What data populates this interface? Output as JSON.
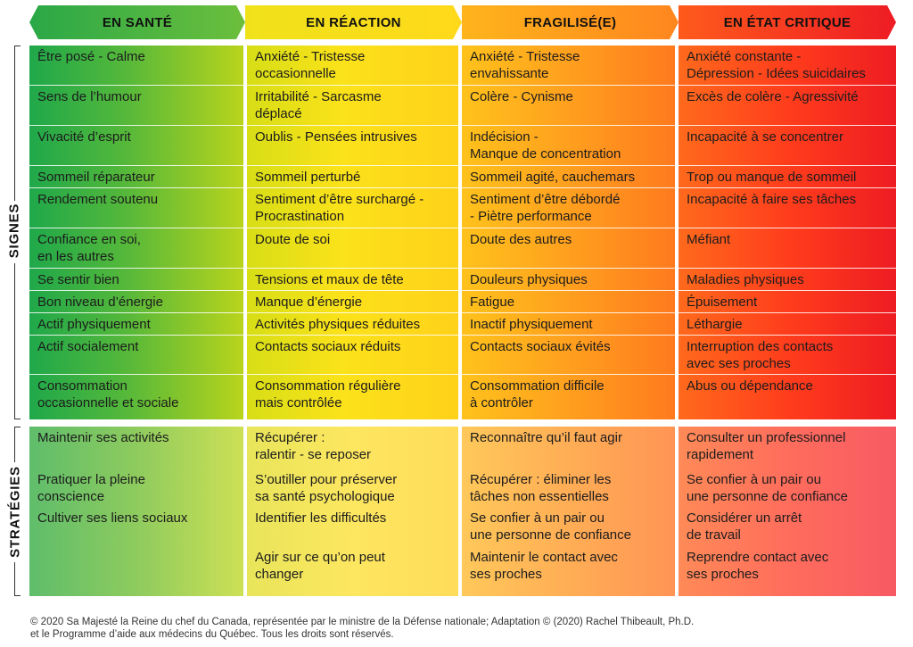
{
  "headers": [
    "EN SANTÉ",
    "EN RÉACTION",
    "FRAGILISÉ(E)",
    "EN ÉTAT CRITIQUE"
  ],
  "header_colors": [
    "#2fb34a",
    "#fbe21a",
    "#ff9c1e",
    "#f0242a"
  ],
  "side_labels": {
    "signes": "SIGNES",
    "strategies": "STRATÉGIES"
  },
  "signes": [
    [
      "Être posé - Calme",
      "Anxiété - Tristesse\noccasionnelle",
      "Anxiété - Tristesse\nenvahissante",
      "Anxiété constante -\nDépression - Idées suicidaires"
    ],
    [
      "Sens de l’humour",
      "Irritabilité - Sarcasme\ndéplacé",
      "Colère - Cynisme",
      "Excès de colère - Agressivité"
    ],
    [
      "Vivacité d’esprit",
      "Oublis - Pensées intrusives",
      "Indécision -\nManque de concentration",
      "Incapacité à se concentrer"
    ],
    [
      "Sommeil réparateur",
      "Sommeil perturbé",
      "Sommeil agité, cauchemars",
      "Trop ou manque de sommeil"
    ],
    [
      "Rendement soutenu",
      "Sentiment d’être surchargé -\nProcrastination",
      "Sentiment d’être débordé\n-  Piètre performance",
      "Incapacité à faire ses tâches"
    ],
    [
      "Confiance en soi,\nen les autres",
      "Doute de soi",
      "Doute des autres",
      "Méfiant"
    ],
    [
      "Se sentir bien",
      "Tensions et maux de tête",
      "Douleurs physiques",
      "Maladies physiques"
    ],
    [
      "Bon niveau d’énergie",
      "Manque d’énergie",
      "Fatigue",
      "Épuisement"
    ],
    [
      "Actif physiquement",
      "Activités physiques réduites",
      "Inactif physiquement",
      "Léthargie"
    ],
    [
      "Actif socialement",
      "Contacts sociaux réduits",
      "Contacts sociaux évités",
      "Interruption des contacts\navec ses proches"
    ],
    [
      "Consommation\noccasionnelle et sociale",
      "Consommation régulière\nmais contrôlée",
      "Consommation difficile\nà contrôler",
      "Abus ou dépendance"
    ]
  ],
  "strategies": [
    [
      "Maintenir ses activités",
      "Récupérer :\nralentir - se reposer",
      "Reconnaître qu’il faut agir",
      "Consulter un professionnel\nrapidement"
    ],
    [
      "Pratiquer la pleine\nconscience",
      "S’outiller pour préserver\nsa santé psychologique",
      "Récupérer : éliminer les\ntâches non essentielles",
      "Se confier à un pair ou\nune personne de confiance"
    ],
    [
      "Cultiver ses liens sociaux",
      "Identifier les difficultés",
      "Se confier à un pair ou\nune personne de confiance",
      "Considérer un arrêt\nde travail"
    ],
    [
      "",
      "Agir sur ce qu’on peut\nchanger",
      "Maintenir le contact avec\nses proches",
      "Reprendre contact avec\nses proches"
    ]
  ],
  "footer": {
    "line1": "© 2020 Sa Majesté la Reine du chef du Canada, représentée par le ministre de la Défense nationale; Adaptation © (2020) Rachel Thibeault, Ph.D.",
    "line2": "et le Programme d’aide aux médecins du Québec. Tous les droits sont réservés."
  }
}
